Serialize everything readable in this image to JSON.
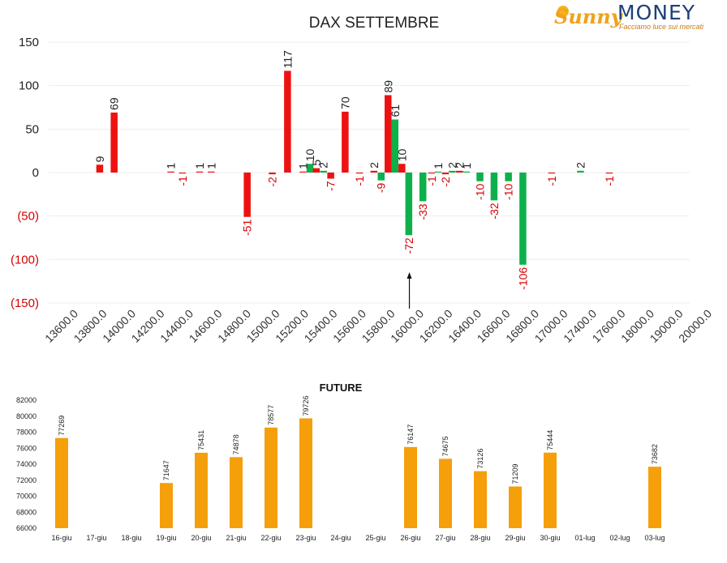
{
  "logo": {
    "sunny": "Sunny",
    "money": "MONEY",
    "tagline": "Facciamo luce sui mercati"
  },
  "colors": {
    "red": "#ee1111",
    "green": "#0db04b",
    "orange": "#f59f0b",
    "neg_tick": "#d60000",
    "pos_tick": "#222222"
  },
  "chart_data": [
    {
      "type": "bar",
      "title": "DAX SETTEMBRE",
      "ylim": [
        -150,
        150
      ],
      "yticks": [
        "150",
        "100",
        "50",
        "0",
        "(50)",
        "(100)",
        "(150)"
      ],
      "categories": [
        "13600.0",
        "13800.0",
        "14000.0",
        "14200.0",
        "14400.0",
        "14600.0",
        "14800.0",
        "15000.0",
        "15200.0",
        "15400.0",
        "15600.0",
        "15800.0",
        "16000.0",
        "16200.0",
        "16400.0",
        "16600.0",
        "16800.0",
        "17000.0",
        "17400.0",
        "17600.0",
        "18000.0",
        "19000.0",
        "20000.0"
      ],
      "bars": [
        {
          "pos": 0.73,
          "value": 9,
          "color": "red",
          "label": "9"
        },
        {
          "pos": 1.23,
          "value": 69,
          "color": "red",
          "label": "69"
        },
        {
          "pos": 3.2,
          "value": 1,
          "color": "red",
          "label": "1"
        },
        {
          "pos": 3.6,
          "value": -1,
          "color": "red",
          "label": "-1"
        },
        {
          "pos": 4.2,
          "value": 1,
          "color": "red",
          "label": "1"
        },
        {
          "pos": 4.6,
          "value": 1,
          "color": "red",
          "label": "1"
        },
        {
          "pos": 5.85,
          "value": -51,
          "color": "red",
          "label": "-51"
        },
        {
          "pos": 6.72,
          "value": -2,
          "color": "red",
          "label": "-2"
        },
        {
          "pos": 7.25,
          "value": 117,
          "color": "red",
          "label": "117"
        },
        {
          "pos": 7.79,
          "value": 1,
          "color": "red",
          "label": "1"
        },
        {
          "pos": 8.03,
          "value": 10,
          "color": "green",
          "label": "10"
        },
        {
          "pos": 8.25,
          "value": 5,
          "color": "red",
          "label": "5"
        },
        {
          "pos": 8.5,
          "value": 2,
          "color": "green",
          "label": "2"
        },
        {
          "pos": 8.75,
          "value": -7,
          "color": "red",
          "label": "-7"
        },
        {
          "pos": 9.25,
          "value": 70,
          "color": "red",
          "label": "70"
        },
        {
          "pos": 9.75,
          "value": -1,
          "color": "red",
          "label": "-1"
        },
        {
          "pos": 10.25,
          "value": 2,
          "color": "red",
          "label": "2"
        },
        {
          "pos": 10.5,
          "value": -9,
          "color": "green",
          "label": "-9"
        },
        {
          "pos": 10.74,
          "value": 89,
          "color": "red",
          "label": "89"
        },
        {
          "pos": 10.98,
          "value": 61,
          "color": "green",
          "label": "61"
        },
        {
          "pos": 11.22,
          "value": 10,
          "color": "red",
          "label": "10"
        },
        {
          "pos": 11.46,
          "value": -72,
          "color": "green",
          "label": "-72"
        },
        {
          "pos": 11.95,
          "value": -33,
          "color": "green",
          "label": "-33"
        },
        {
          "pos": 12.25,
          "value": -1,
          "color": "red",
          "label": "-1"
        },
        {
          "pos": 12.48,
          "value": 1,
          "color": "green",
          "label": "1"
        },
        {
          "pos": 12.73,
          "value": -2,
          "color": "red",
          "label": "-2"
        },
        {
          "pos": 12.97,
          "value": 2,
          "color": "green",
          "label": "2"
        },
        {
          "pos": 13.22,
          "value": 2,
          "color": "red",
          "label": "2"
        },
        {
          "pos": 13.46,
          "value": 1,
          "color": "green",
          "label": "1"
        },
        {
          "pos": 13.93,
          "value": -10,
          "color": "green",
          "label": "-10"
        },
        {
          "pos": 14.42,
          "value": -32,
          "color": "green",
          "label": "-32"
        },
        {
          "pos": 14.92,
          "value": -10,
          "color": "green",
          "label": "-10"
        },
        {
          "pos": 15.42,
          "value": -106,
          "color": "green",
          "label": "-106"
        },
        {
          "pos": 16.42,
          "value": -1,
          "color": "red",
          "label": "-1"
        },
        {
          "pos": 17.42,
          "value": 2,
          "color": "green",
          "label": "2"
        },
        {
          "pos": 18.42,
          "value": -1,
          "color": "red",
          "label": "-1"
        }
      ],
      "arrow_at": 11.48
    },
    {
      "type": "bar",
      "title": "FUTURE",
      "ylim": [
        66000,
        82000
      ],
      "yticks": [
        82000,
        80000,
        78000,
        76000,
        74000,
        72000,
        70000,
        68000,
        66000
      ],
      "categories": [
        "16-giu",
        "17-giu",
        "18-giu",
        "19-giu",
        "20-giu",
        "21-giu",
        "22-giu",
        "23-giu",
        "24-giu",
        "25-giu",
        "26-giu",
        "27-giu",
        "28-giu",
        "29-giu",
        "30-giu",
        "01-lug",
        "02-lug",
        "03-lug"
      ],
      "values": [
        77269,
        null,
        null,
        71647,
        75431,
        74878,
        78577,
        79726,
        null,
        null,
        76147,
        74675,
        73126,
        71209,
        75444,
        null,
        null,
        73682
      ],
      "color": "orange"
    }
  ]
}
